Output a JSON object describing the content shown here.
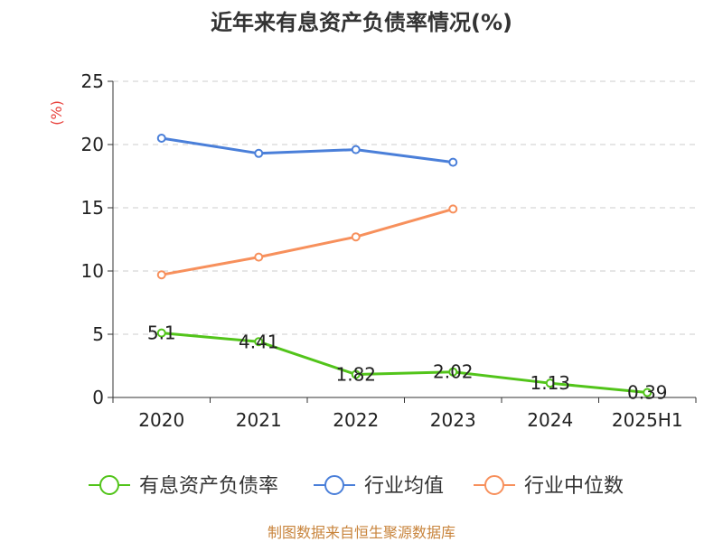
{
  "chart_data": {
    "type": "line",
    "title": "近年来有息资产负债率情况(%)",
    "y_unit": "(%)",
    "categories": [
      "2020",
      "2021",
      "2022",
      "2023",
      "2024",
      "2025H1"
    ],
    "ylim": [
      0,
      25
    ],
    "yticks": [
      0,
      5,
      10,
      15,
      20,
      25
    ],
    "grid": true,
    "legend_position": "bottom",
    "series": [
      {
        "name": "有息资产负债率",
        "color": "#52c41a",
        "values": [
          5.1,
          4.41,
          1.82,
          2.02,
          1.13,
          0.39
        ],
        "labels": [
          "5.1",
          "4.41",
          "1.82",
          "2.02",
          "1.13",
          "0.39"
        ]
      },
      {
        "name": "行业均值",
        "color": "#4a7fd9",
        "values": [
          20.5,
          19.3,
          19.6,
          18.6,
          null,
          null
        ]
      },
      {
        "name": "行业中位数",
        "color": "#f7905c",
        "values": [
          9.7,
          11.1,
          12.7,
          14.9,
          null,
          null
        ]
      }
    ]
  },
  "source": "制图数据来自恒生聚源数据库",
  "colors": {
    "unit": "#e8413c",
    "source": "#c8843c",
    "grid": "#cccccc",
    "axis": "#333333"
  }
}
